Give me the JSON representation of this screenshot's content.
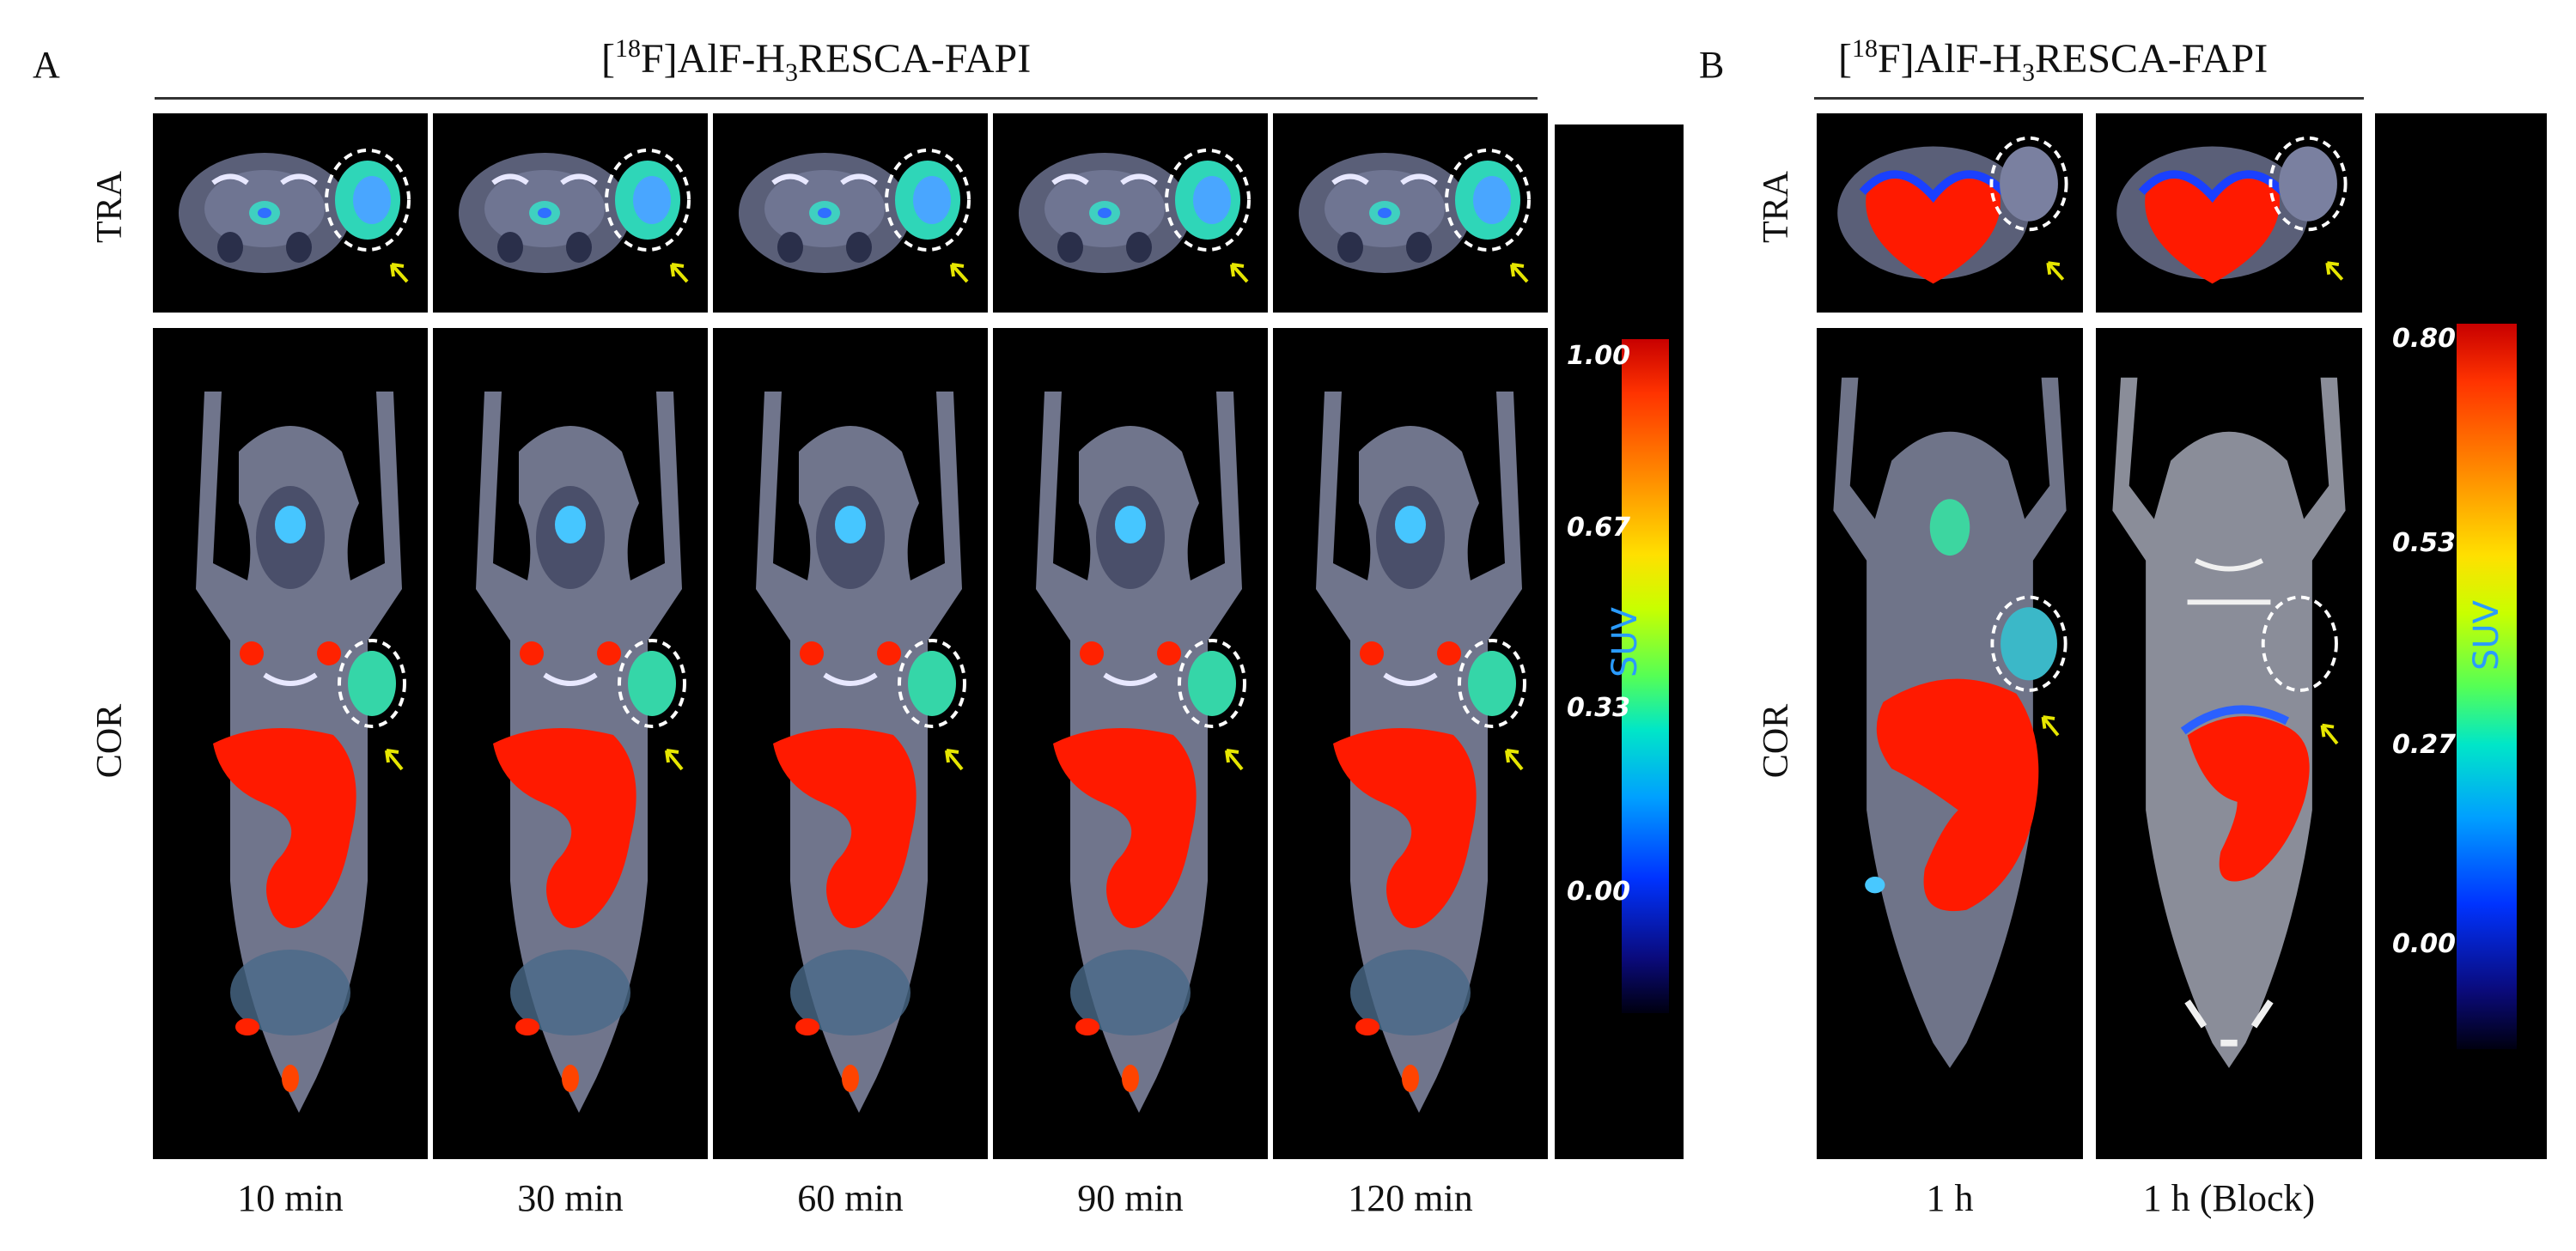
{
  "panel_a": {
    "letter": "A",
    "title": {
      "pre": "[",
      "mass": "18",
      "mid": "F]AlF-H",
      "sub": "3",
      "post": "RESCA-FAPI"
    },
    "row_labels": {
      "tra": "TRA",
      "cor": "COR"
    },
    "timepoints": [
      "10 min",
      "30 min",
      "60 min",
      "90 min",
      "120 min"
    ],
    "colorbar": {
      "label": "SUV",
      "ticks": [
        "1.00",
        "0.67",
        "0.33",
        "0.00"
      ]
    }
  },
  "panel_b": {
    "letter": "B",
    "title": {
      "pre": "[",
      "mass": "18",
      "mid": "F]AlF-H",
      "sub": "3",
      "post": "RESCA-FAPI"
    },
    "row_labels": {
      "tra": "TRA",
      "cor": "COR"
    },
    "conditions": [
      "1 h",
      "1 h (Block)"
    ],
    "colorbar": {
      "label": "SUV",
      "ticks": [
        "0.80",
        "0.53",
        "0.27",
        "0.00"
      ]
    }
  },
  "colors": {
    "hot": "#ff1a00",
    "dashed_circle": "#ffffff",
    "arrow": "#e6e600",
    "tick_text": "#ffffff",
    "suv_text": "#2a9bff"
  }
}
